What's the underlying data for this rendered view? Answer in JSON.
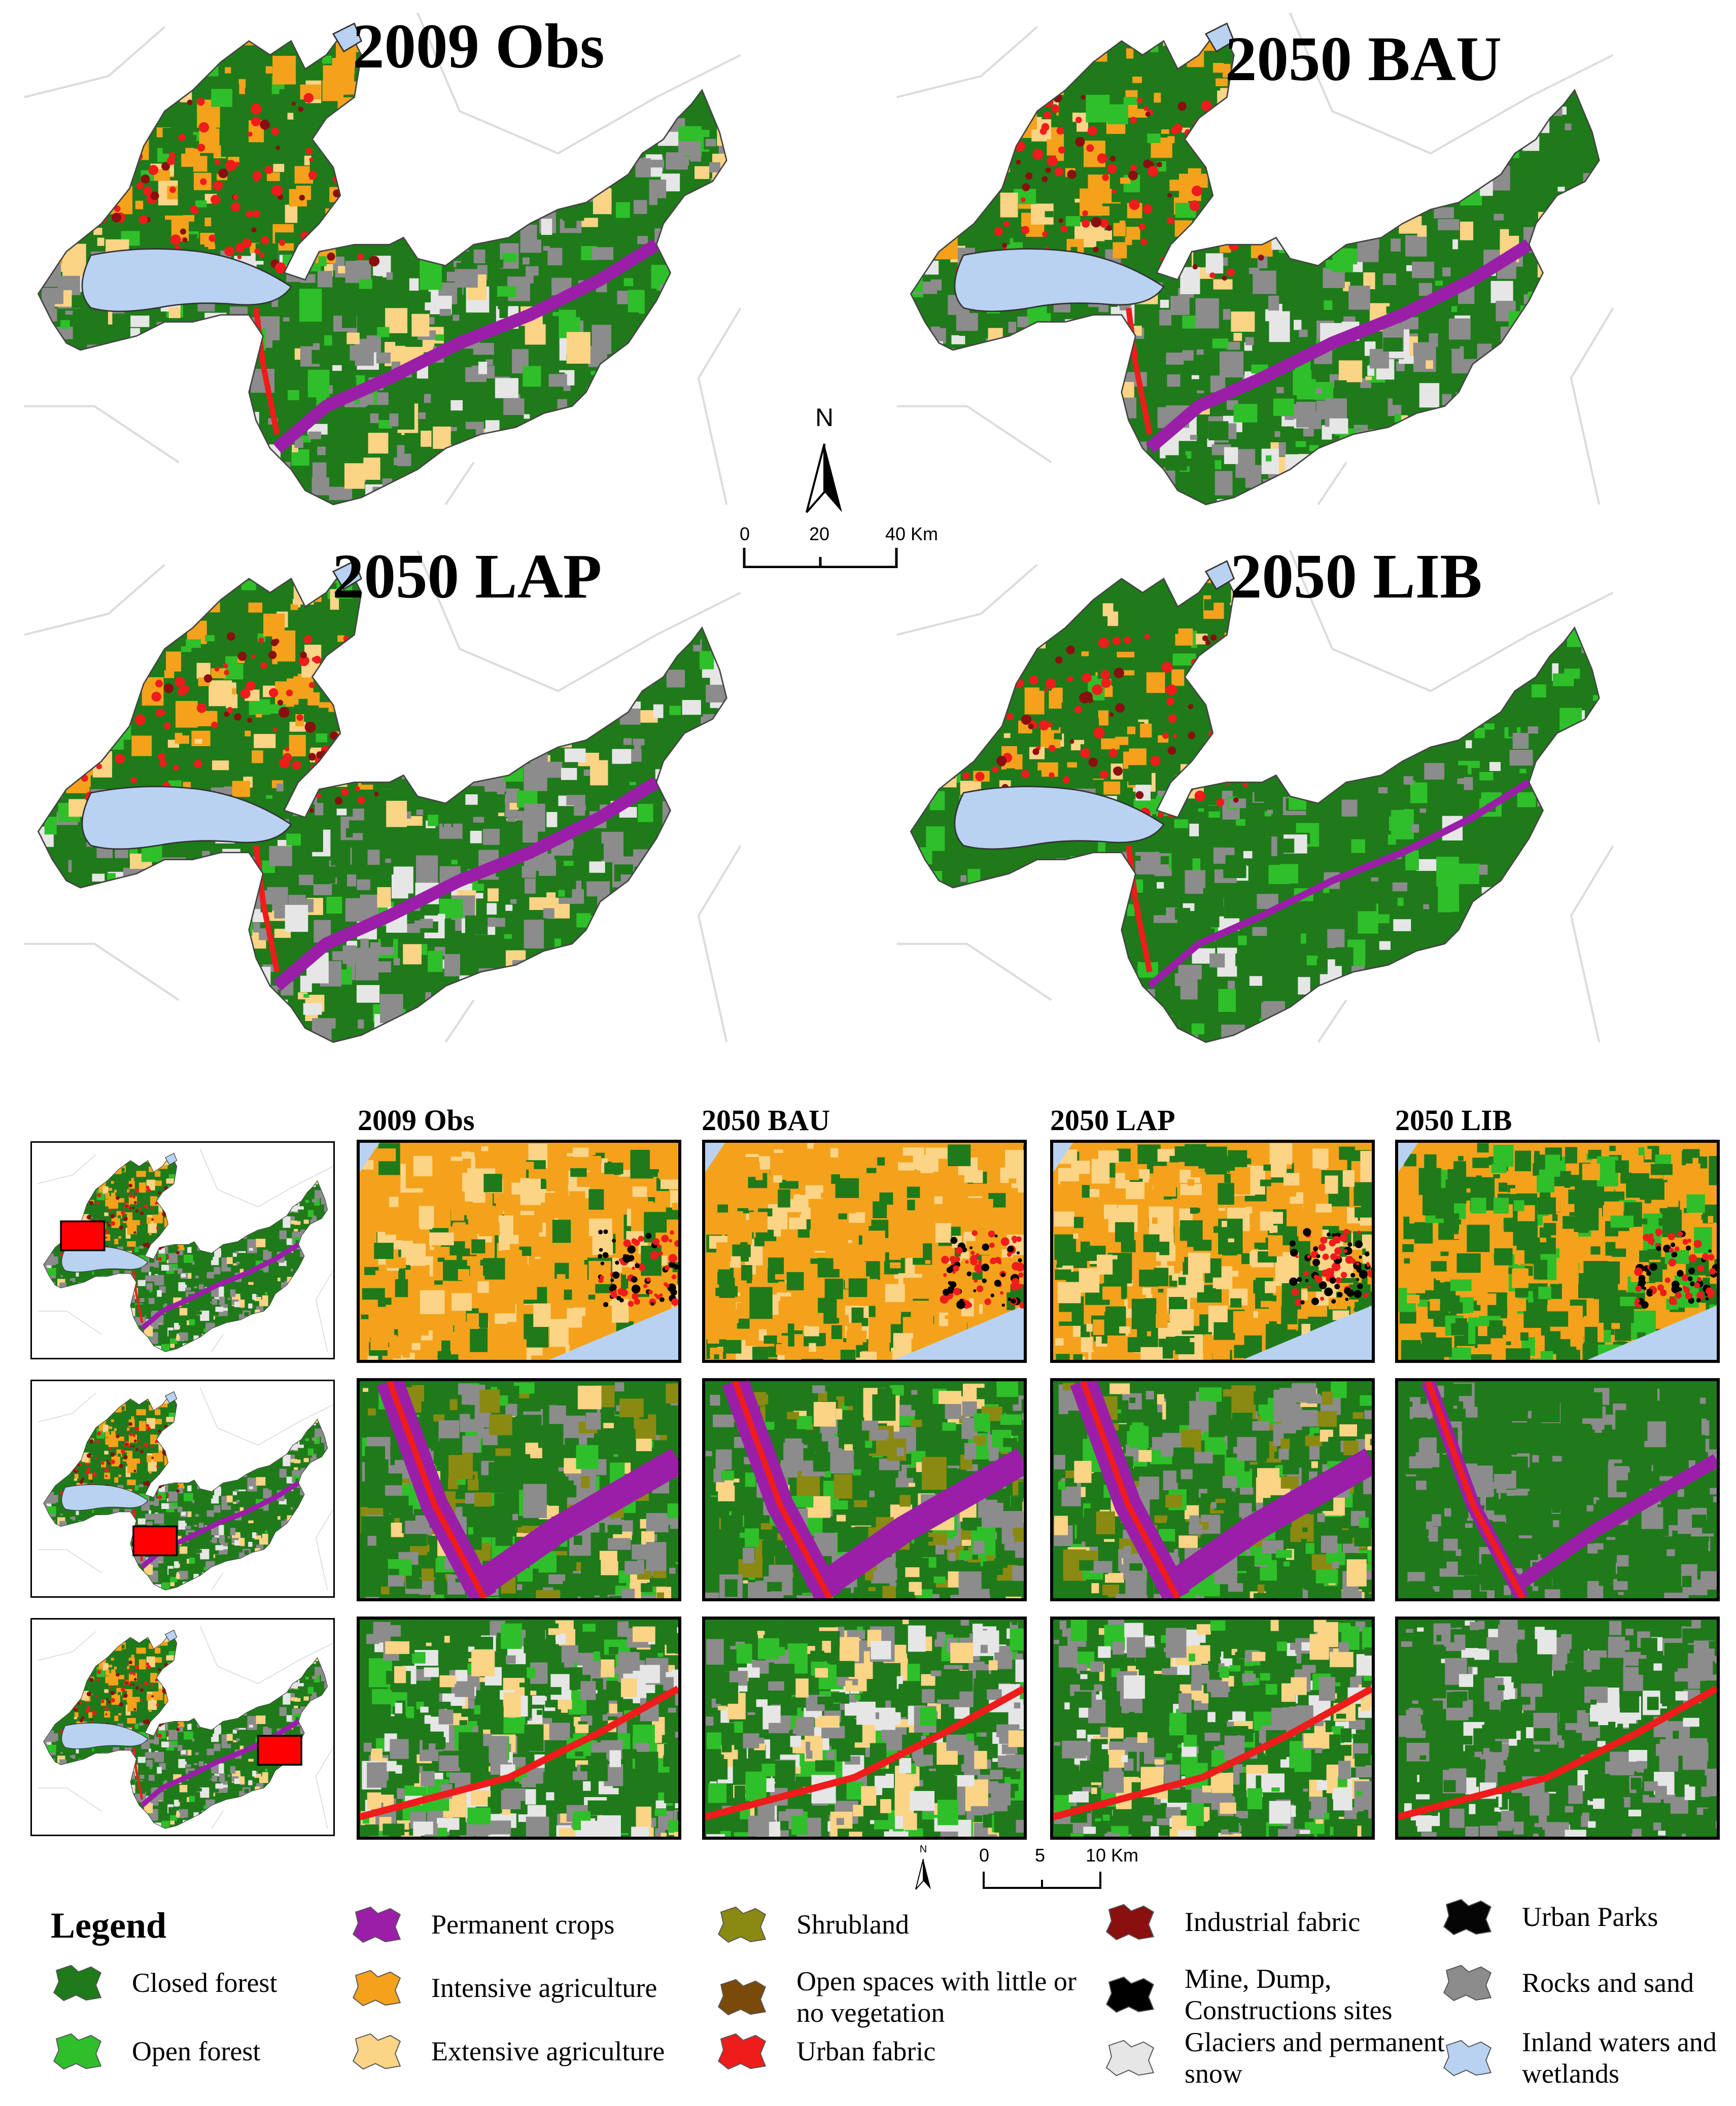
{
  "colors": {
    "closed_forest": "#1f7a1a",
    "open_forest": "#2fbf2a",
    "permanent_crops": "#9b1ea8",
    "intensive_agriculture": "#f4a21c",
    "extensive_agriculture": "#fbd486",
    "shrubland": "#8a8a12",
    "open_spaces": "#7a4a0a",
    "urban_fabric": "#ef1c1c",
    "industrial_fabric": "#8a0f0f",
    "mine_dump": "#000000",
    "glaciers": "#e6e6e6",
    "urban_parks": "#050505",
    "rocks_sand": "#8c8c8c",
    "inland_waters": "#b9d2f2",
    "inset_marker": "#ff0000"
  },
  "panels": [
    {
      "title": "2009 Obs"
    },
    {
      "title": "2050 BAU"
    },
    {
      "title": "2050 LAP"
    },
    {
      "title": "2050 LIB"
    }
  ],
  "north_arrow": {
    "label": "N"
  },
  "scale_main": {
    "ticks": [
      "0",
      "20",
      "40 Km"
    ]
  },
  "scale_zoom": {
    "ticks": [
      "0",
      "5",
      "10 Km"
    ]
  },
  "zoom_columns": [
    "2009 Obs",
    "2050 BAU",
    "2050 LAP",
    "2050 LIB"
  ],
  "legend": {
    "title": "Legend",
    "items": [
      {
        "label": "Closed forest",
        "color_key": "closed_forest"
      },
      {
        "label": "Open forest",
        "color_key": "open_forest"
      },
      {
        "label": "Permanent crops",
        "color_key": "permanent_crops"
      },
      {
        "label": "Intensive agriculture",
        "color_key": "intensive_agriculture"
      },
      {
        "label": "Extensive agriculture",
        "color_key": "extensive_agriculture"
      },
      {
        "label": "Shrubland",
        "color_key": "shrubland"
      },
      {
        "label": "Open spaces with little or no vegetation",
        "color_key": "open_spaces"
      },
      {
        "label": "Urban fabric",
        "color_key": "urban_fabric"
      },
      {
        "label": "Industrial fabric",
        "color_key": "industrial_fabric"
      },
      {
        "label": "Mine, Dump, Constructions sites",
        "color_key": "mine_dump"
      },
      {
        "label": "Glaciers and permanent snow",
        "color_key": "glaciers"
      },
      {
        "label": "Urban Parks",
        "color_key": "urban_parks"
      },
      {
        "label": "Rocks and sand",
        "color_key": "rocks_sand"
      },
      {
        "label": "Inland waters and wetlands",
        "color_key": "inland_waters"
      }
    ]
  }
}
